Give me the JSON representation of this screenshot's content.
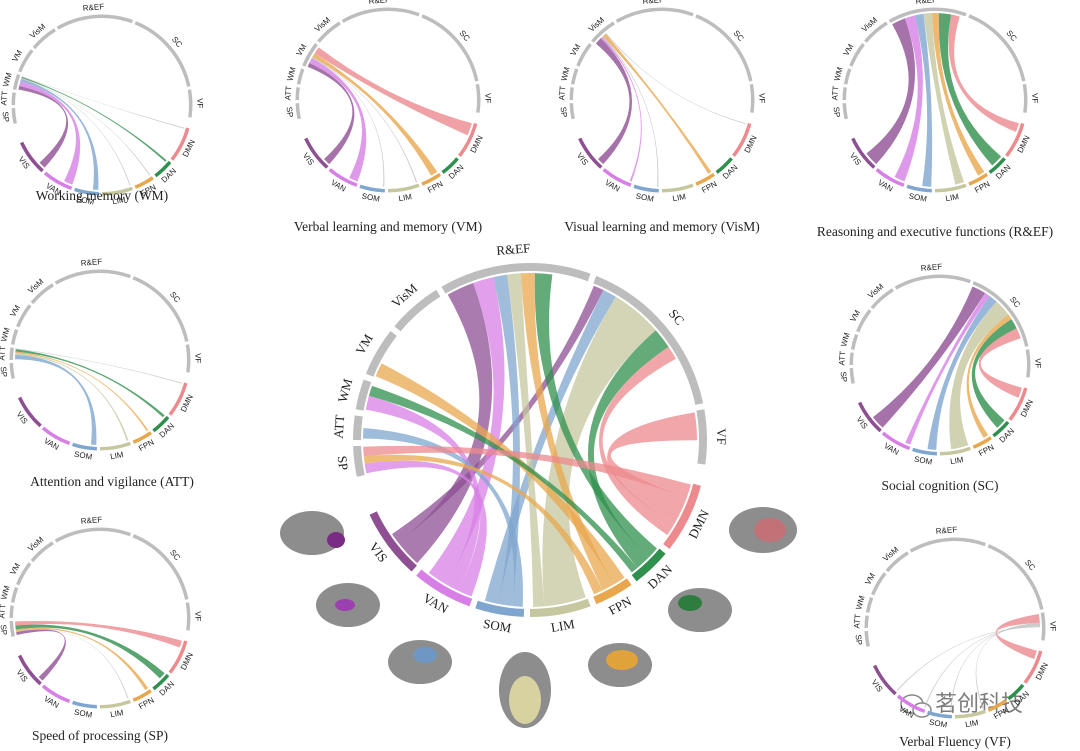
{
  "domains": [
    "SP",
    "ATT",
    "WM",
    "VM",
    "VisM",
    "R&EF",
    "SC",
    "VF"
  ],
  "networks": [
    "VIS",
    "VAN",
    "SOM",
    "LIM",
    "FPN",
    "DAN",
    "DMN"
  ],
  "panels": [
    {
      "title": "Working memory (WM)"
    },
    {
      "title": "Verbal learning and memory (VM)"
    },
    {
      "title": "Visual learning and memory (VisM)"
    },
    {
      "title": "Reasoning and executive functions (R&EF)"
    },
    {
      "title": "Attention and vigilance (ATT)"
    },
    {
      "title": "Social cognition (SC)"
    },
    {
      "title": "Speed of processing (SP)"
    },
    {
      "title": "Verbal Fluency (VF)"
    }
  ],
  "watermark": "茗创科技"
}
